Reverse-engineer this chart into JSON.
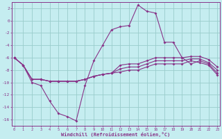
{
  "xlabel": "Windchill (Refroidissement éolien,°C)",
  "xlim_min": 0,
  "xlim_max": 23,
  "ylim_min": -17,
  "ylim_max": 3,
  "yticks": [
    2,
    0,
    -2,
    -4,
    -6,
    -8,
    -10,
    -12,
    -14,
    -16
  ],
  "xticks": [
    0,
    1,
    2,
    3,
    4,
    5,
    6,
    7,
    8,
    9,
    10,
    11,
    12,
    13,
    14,
    15,
    16,
    17,
    18,
    19,
    20,
    21,
    22,
    23
  ],
  "bg_color": "#c5edf0",
  "grid_color": "#99cccc",
  "line_color": "#883388",
  "line1_y": [
    -6.0,
    -7.2,
    -10.0,
    -10.5,
    -13.0,
    -15.0,
    -15.5,
    -16.2,
    -10.5,
    -6.5,
    -4.0,
    -1.5,
    -1.0,
    -0.8,
    2.5,
    1.5,
    1.2,
    -3.5,
    -3.5,
    -6.0,
    -7.0,
    -6.5,
    -7.0,
    -8.5
  ],
  "line2_y": [
    -6.0,
    -7.2,
    -9.5,
    -9.5,
    -9.8,
    -9.8,
    -9.8,
    -9.8,
    -9.5,
    -9.0,
    -8.7,
    -8.5,
    -8.3,
    -8.0,
    -8.0,
    -7.5,
    -7.0,
    -7.0,
    -7.0,
    -7.0,
    -6.5,
    -6.8,
    -7.2,
    -8.8
  ],
  "line3_y": [
    -6.0,
    -7.2,
    -9.5,
    -9.5,
    -9.8,
    -9.8,
    -9.8,
    -9.8,
    -9.5,
    -9.0,
    -8.7,
    -8.5,
    -7.8,
    -7.5,
    -7.5,
    -7.0,
    -6.5,
    -6.5,
    -6.5,
    -6.5,
    -6.2,
    -6.2,
    -6.8,
    -8.0
  ],
  "line4_y": [
    -6.0,
    -7.2,
    -9.5,
    -9.5,
    -9.8,
    -9.8,
    -9.8,
    -9.8,
    -9.5,
    -9.0,
    -8.7,
    -8.5,
    -7.2,
    -7.0,
    -7.0,
    -6.5,
    -6.0,
    -6.0,
    -6.0,
    -6.0,
    -5.8,
    -5.8,
    -6.3,
    -7.5
  ]
}
